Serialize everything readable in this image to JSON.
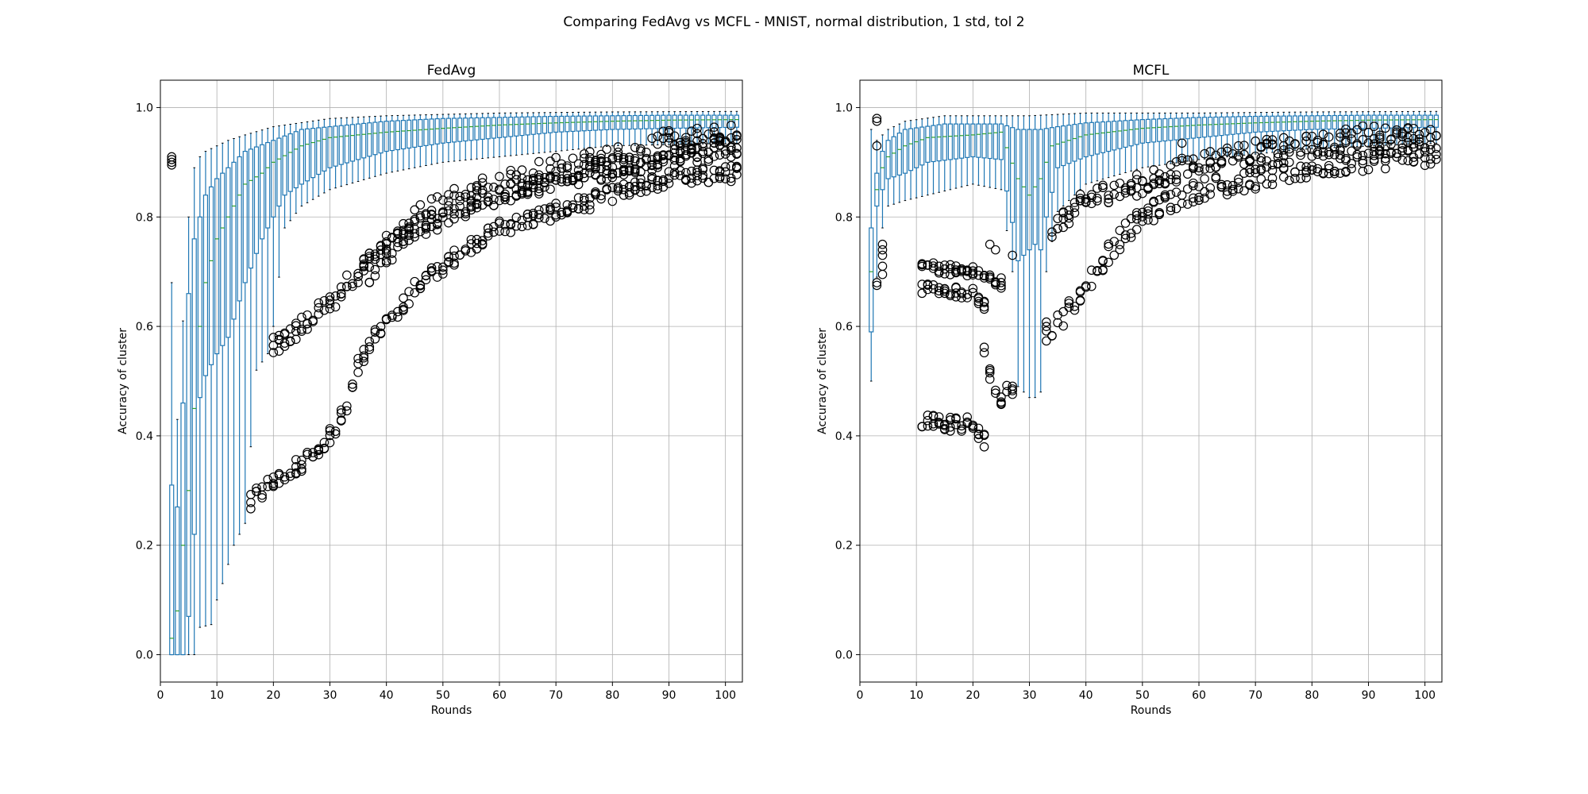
{
  "figure": {
    "suptitle": "Comparing FedAvg vs MCFL - MNIST, normal distribution, 1 std, tol 2"
  },
  "chart_data": [
    {
      "type": "box",
      "title": "FedAvg",
      "xlabel": "Rounds",
      "ylabel": "Accuracy of cluster",
      "xlim": [
        0,
        103
      ],
      "ylim": [
        -0.05,
        1.05
      ],
      "xticks": [
        "0",
        "10",
        "20",
        "30",
        "40",
        "50",
        "60",
        "70",
        "80",
        "90",
        "100"
      ],
      "yticks": [
        "0.0",
        "0.2",
        "0.4",
        "0.6",
        "0.8",
        "1.0"
      ],
      "grid": true,
      "box_color": "#1f77b4",
      "median_color": "#2ca02c",
      "rounds": [
        2,
        102
      ],
      "median_anchors": [
        [
          2,
          0.03
        ],
        [
          3,
          0.08
        ],
        [
          4,
          0.2
        ],
        [
          5,
          0.3
        ],
        [
          6,
          0.45
        ],
        [
          7,
          0.6
        ],
        [
          8,
          0.68
        ],
        [
          10,
          0.76
        ],
        [
          12,
          0.8
        ],
        [
          15,
          0.86
        ],
        [
          18,
          0.88
        ],
        [
          20,
          0.9
        ],
        [
          25,
          0.93
        ],
        [
          30,
          0.945
        ],
        [
          40,
          0.955
        ],
        [
          50,
          0.962
        ],
        [
          60,
          0.968
        ],
        [
          70,
          0.972
        ],
        [
          80,
          0.975
        ],
        [
          90,
          0.977
        ],
        [
          102,
          0.978
        ]
      ],
      "q3_anchors": [
        [
          2,
          0.31
        ],
        [
          3,
          0.27
        ],
        [
          4,
          0.46
        ],
        [
          5,
          0.66
        ],
        [
          6,
          0.76
        ],
        [
          7,
          0.8
        ],
        [
          8,
          0.84
        ],
        [
          10,
          0.87
        ],
        [
          12,
          0.89
        ],
        [
          15,
          0.92
        ],
        [
          20,
          0.94
        ],
        [
          25,
          0.96
        ],
        [
          30,
          0.965
        ],
        [
          40,
          0.975
        ],
        [
          50,
          0.98
        ],
        [
          60,
          0.982
        ],
        [
          70,
          0.984
        ],
        [
          80,
          0.985
        ],
        [
          90,
          0.986
        ],
        [
          102,
          0.986
        ]
      ],
      "q1_anchors": [
        [
          2,
          0.0
        ],
        [
          3,
          0.0
        ],
        [
          4,
          0.0
        ],
        [
          5,
          0.07
        ],
        [
          6,
          0.22
        ],
        [
          7,
          0.47
        ],
        [
          8,
          0.51
        ],
        [
          10,
          0.55
        ],
        [
          12,
          0.58
        ],
        [
          15,
          0.68
        ],
        [
          18,
          0.76
        ],
        [
          20,
          0.8
        ],
        [
          22,
          0.84
        ],
        [
          25,
          0.86
        ],
        [
          30,
          0.89
        ],
        [
          40,
          0.92
        ],
        [
          50,
          0.935
        ],
        [
          60,
          0.945
        ],
        [
          70,
          0.955
        ],
        [
          80,
          0.96
        ],
        [
          90,
          0.962
        ],
        [
          102,
          0.964
        ]
      ],
      "whisker_high_anchors": [
        [
          2,
          0.68
        ],
        [
          3,
          0.43
        ],
        [
          4,
          0.61
        ],
        [
          5,
          0.8
        ],
        [
          6,
          0.89
        ],
        [
          7,
          0.91
        ],
        [
          8,
          0.92
        ],
        [
          10,
          0.93
        ],
        [
          12,
          0.94
        ],
        [
          15,
          0.95
        ],
        [
          20,
          0.965
        ],
        [
          30,
          0.98
        ],
        [
          40,
          0.985
        ],
        [
          60,
          0.99
        ],
        [
          80,
          0.992
        ],
        [
          102,
          0.993
        ]
      ],
      "whisker_low_anchors": [
        [
          2,
          0.0
        ],
        [
          3,
          0.0
        ],
        [
          4,
          0.0
        ],
        [
          5,
          0.0
        ],
        [
          6,
          0.0
        ],
        [
          7,
          0.05
        ],
        [
          9,
          0.055
        ],
        [
          10,
          0.1
        ],
        [
          11,
          0.13
        ],
        [
          13,
          0.2
        ],
        [
          15,
          0.24
        ],
        [
          17,
          0.52
        ],
        [
          19,
          0.55
        ],
        [
          20,
          0.6
        ],
        [
          22,
          0.78
        ],
        [
          25,
          0.82
        ],
        [
          30,
          0.85
        ],
        [
          40,
          0.88
        ],
        [
          50,
          0.9
        ],
        [
          60,
          0.91
        ],
        [
          80,
          0.93
        ],
        [
          102,
          0.935
        ]
      ],
      "outlier_bands": [
        {
          "anchors": [
            [
              20,
              0.56
            ],
            [
              25,
              0.6
            ],
            [
              30,
              0.64
            ],
            [
              35,
              0.7
            ],
            [
              40,
              0.75
            ],
            [
              45,
              0.78
            ],
            [
              50,
              0.8
            ],
            [
              55,
              0.82
            ],
            [
              60,
              0.84
            ],
            [
              70,
              0.87
            ],
            [
              80,
              0.89
            ],
            [
              90,
              0.91
            ],
            [
              102,
              0.93
            ]
          ],
          "spread": 0.02
        },
        {
          "anchors": [
            [
              16,
              0.28
            ],
            [
              20,
              0.32
            ],
            [
              25,
              0.35
            ],
            [
              30,
              0.4
            ],
            [
              33,
              0.45
            ],
            [
              35,
              0.53
            ],
            [
              38,
              0.58
            ],
            [
              40,
              0.6
            ],
            [
              45,
              0.67
            ],
            [
              50,
              0.71
            ],
            [
              55,
              0.75
            ],
            [
              60,
              0.78
            ],
            [
              70,
              0.81
            ],
            [
              80,
              0.84
            ],
            [
              90,
              0.87
            ],
            [
              102,
              0.88
            ]
          ],
          "spread": 0.015
        },
        {
          "anchors": [
            [
              36,
              0.7
            ],
            [
              40,
              0.74
            ],
            [
              45,
              0.79
            ],
            [
              50,
              0.82
            ],
            [
              55,
              0.84
            ],
            [
              60,
              0.86
            ],
            [
              70,
              0.88
            ],
            [
              80,
              0.9
            ],
            [
              90,
              0.93
            ],
            [
              102,
              0.94
            ]
          ],
          "spread": 0.03
        }
      ],
      "extra_outliers": [
        [
          2,
          0.91
        ],
        [
          2,
          0.905
        ],
        [
          2,
          0.9
        ],
        [
          2,
          0.895
        ]
      ]
    },
    {
      "type": "box",
      "title": "MCFL",
      "xlabel": "Rounds",
      "ylabel": "Accuracy of cluster",
      "xlim": [
        0,
        103
      ],
      "ylim": [
        -0.05,
        1.05
      ],
      "xticks": [
        "0",
        "10",
        "20",
        "30",
        "40",
        "50",
        "60",
        "70",
        "80",
        "90",
        "100"
      ],
      "yticks": [
        "0.0",
        "0.2",
        "0.4",
        "0.6",
        "0.8",
        "1.0"
      ],
      "grid": true,
      "box_color": "#1f77b4",
      "median_color": "#2ca02c",
      "rounds": [
        2,
        102
      ],
      "median_anchors": [
        [
          2,
          0.7
        ],
        [
          3,
          0.85
        ],
        [
          4,
          0.89
        ],
        [
          5,
          0.91
        ],
        [
          8,
          0.93
        ],
        [
          12,
          0.945
        ],
        [
          20,
          0.95
        ],
        [
          25,
          0.955
        ],
        [
          28,
          0.87
        ],
        [
          30,
          0.84
        ],
        [
          32,
          0.87
        ],
        [
          34,
          0.93
        ],
        [
          40,
          0.95
        ],
        [
          50,
          0.962
        ],
        [
          60,
          0.968
        ],
        [
          70,
          0.972
        ],
        [
          80,
          0.975
        ],
        [
          90,
          0.977
        ],
        [
          102,
          0.978
        ]
      ],
      "q3_anchors": [
        [
          2,
          0.78
        ],
        [
          3,
          0.88
        ],
        [
          4,
          0.92
        ],
        [
          5,
          0.94
        ],
        [
          8,
          0.96
        ],
        [
          15,
          0.97
        ],
        [
          25,
          0.97
        ],
        [
          28,
          0.96
        ],
        [
          30,
          0.96
        ],
        [
          32,
          0.96
        ],
        [
          35,
          0.965
        ],
        [
          40,
          0.972
        ],
        [
          50,
          0.978
        ],
        [
          60,
          0.982
        ],
        [
          70,
          0.984
        ],
        [
          80,
          0.985
        ],
        [
          90,
          0.986
        ],
        [
          102,
          0.986
        ]
      ],
      "q1_anchors": [
        [
          2,
          0.59
        ],
        [
          3,
          0.82
        ],
        [
          4,
          0.85
        ],
        [
          5,
          0.87
        ],
        [
          8,
          0.88
        ],
        [
          12,
          0.9
        ],
        [
          20,
          0.91
        ],
        [
          25,
          0.905
        ],
        [
          27,
          0.79
        ],
        [
          28,
          0.72
        ],
        [
          29,
          0.73
        ],
        [
          30,
          0.74
        ],
        [
          31,
          0.75
        ],
        [
          32,
          0.74
        ],
        [
          33,
          0.8
        ],
        [
          35,
          0.89
        ],
        [
          40,
          0.91
        ],
        [
          50,
          0.935
        ],
        [
          60,
          0.945
        ],
        [
          70,
          0.955
        ],
        [
          80,
          0.96
        ],
        [
          90,
          0.962
        ],
        [
          102,
          0.964
        ]
      ],
      "whisker_high_anchors": [
        [
          2,
          0.96
        ],
        [
          3,
          0.94
        ],
        [
          4,
          0.95
        ],
        [
          5,
          0.96
        ],
        [
          8,
          0.975
        ],
        [
          15,
          0.985
        ],
        [
          25,
          0.985
        ],
        [
          30,
          0.985
        ],
        [
          40,
          0.99
        ],
        [
          60,
          0.99
        ],
        [
          80,
          0.992
        ],
        [
          102,
          0.993
        ]
      ],
      "whisker_low_anchors": [
        [
          2,
          0.5
        ],
        [
          3,
          0.69
        ],
        [
          4,
          0.78
        ],
        [
          5,
          0.82
        ],
        [
          8,
          0.83
        ],
        [
          12,
          0.84
        ],
        [
          20,
          0.86
        ],
        [
          25,
          0.85
        ],
        [
          27,
          0.7
        ],
        [
          28,
          0.49
        ],
        [
          29,
          0.48
        ],
        [
          30,
          0.47
        ],
        [
          31,
          0.47
        ],
        [
          32,
          0.48
        ],
        [
          33,
          0.7
        ],
        [
          35,
          0.81
        ],
        [
          40,
          0.86
        ],
        [
          50,
          0.89
        ],
        [
          60,
          0.905
        ],
        [
          80,
          0.925
        ],
        [
          102,
          0.935
        ]
      ],
      "outlier_bands": [
        {
          "anchors": [
            [
              11,
              0.71
            ],
            [
              20,
              0.7
            ],
            [
              25,
              0.68
            ]
          ],
          "spread": 0.01
        },
        {
          "anchors": [
            [
              11,
              0.67
            ],
            [
              20,
              0.66
            ],
            [
              22,
              0.64
            ]
          ],
          "spread": 0.01
        },
        {
          "anchors": [
            [
              11,
              0.425
            ],
            [
              20,
              0.42
            ],
            [
              22,
              0.39
            ]
          ],
          "spread": 0.015
        },
        {
          "anchors": [
            [
              22,
              0.55
            ],
            [
              23,
              0.51
            ],
            [
              25,
              0.47
            ],
            [
              27,
              0.49
            ]
          ],
          "spread": 0.015
        },
        {
          "anchors": [
            [
              33,
              0.59
            ],
            [
              35,
              0.61
            ],
            [
              38,
              0.64
            ],
            [
              40,
              0.67
            ],
            [
              45,
              0.75
            ],
            [
              50,
              0.8
            ],
            [
              55,
              0.83
            ],
            [
              60,
              0.85
            ],
            [
              70,
              0.87
            ],
            [
              80,
              0.89
            ],
            [
              90,
              0.905
            ],
            [
              102,
              0.915
            ]
          ],
          "spread": 0.02
        },
        {
          "anchors": [
            [
              34,
              0.78
            ],
            [
              40,
              0.83
            ],
            [
              45,
              0.85
            ],
            [
              50,
              0.86
            ],
            [
              55,
              0.88
            ],
            [
              60,
              0.9
            ],
            [
              70,
              0.92
            ],
            [
              80,
              0.93
            ],
            [
              90,
              0.95
            ],
            [
              102,
              0.94
            ]
          ],
          "spread": 0.02
        }
      ],
      "extra_outliers": [
        [
          3,
          0.98
        ],
        [
          3,
          0.975
        ],
        [
          3,
          0.93
        ],
        [
          3,
          0.68
        ],
        [
          3,
          0.675
        ],
        [
          4,
          0.75
        ],
        [
          4,
          0.74
        ],
        [
          4,
          0.73
        ],
        [
          4,
          0.71
        ],
        [
          4,
          0.695
        ],
        [
          57,
          0.935
        ],
        [
          23,
          0.75
        ],
        [
          24,
          0.74
        ],
        [
          27,
          0.73
        ]
      ]
    }
  ]
}
